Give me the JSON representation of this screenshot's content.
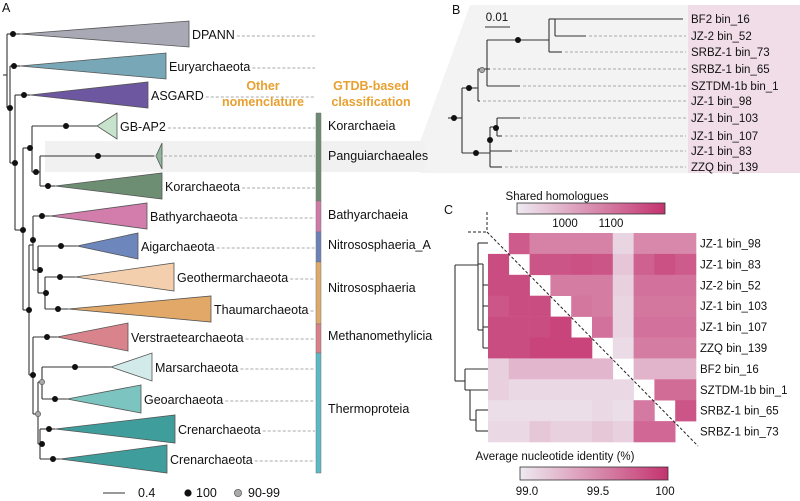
{
  "panel_labels": {
    "a": "A",
    "b": "B",
    "c": "C"
  },
  "panel_a": {
    "header_other": [
      "Other",
      "nomenclature"
    ],
    "header_gtdb": [
      "GTDB-based",
      "classification"
    ],
    "highlight_color": "#d8312e",
    "clades": [
      {
        "name": "DPANN",
        "color": "#a9a9b6"
      },
      {
        "name": "Euryarchaeota",
        "color": "#78a8b8"
      },
      {
        "name": "ASGARD",
        "color": "#6c57a0"
      },
      {
        "name": "GB-AP2",
        "color": "#c7e3cc"
      },
      {
        "name": "",
        "color": "#8fb89a"
      },
      {
        "name": "Korarchaeota",
        "color": "#6e8e74"
      },
      {
        "name": "Bathyarchaeota",
        "color": "#d27dac"
      },
      {
        "name": "Aigarchaeota",
        "color": "#6d86bb"
      },
      {
        "name": "Geothermarchaeota",
        "color": "#f4cfae"
      },
      {
        "name": "Thaumarchaeota",
        "color": "#e2a868"
      },
      {
        "name": "Verstraetearchaeota",
        "color": "#d9848c"
      },
      {
        "name": "Marsarchaeota",
        "color": "#d2eaea"
      },
      {
        "name": "Geoarchaeota",
        "color": "#7cc4c0"
      },
      {
        "name": "Crenarchaeota",
        "color": "#3f9e9c"
      },
      {
        "name": "Crenarchaeota",
        "color": "#3f9e9c"
      }
    ],
    "classifications": [
      {
        "name": "Korarchaeia",
        "color": "#6e8a72"
      },
      {
        "name": "Panguiarchaeales",
        "color": "#6e8a72",
        "highlight": true
      },
      {
        "name": "Bathyarchaeia",
        "color": "#d07aa6"
      },
      {
        "name": "Nitrososphaeria_A",
        "color": "#6a82b8"
      },
      {
        "name": "Nitrososphaeria",
        "color": "#e0a86a"
      },
      {
        "name": "Methanomethylicia",
        "color": "#d98088"
      },
      {
        "name": "Thermoproteia",
        "color": "#5bb8c4"
      }
    ],
    "legend": {
      "scale": "0.4",
      "support_full": "100",
      "support_partial": "90-99"
    }
  },
  "panel_b": {
    "scale": "0.01",
    "label_bg": "#f1dde8",
    "tips": [
      "BF2 bin_16",
      "JZ-2 bin_52",
      "SRBZ-1 bin_73",
      "SRBZ-1 bin_65",
      "SZTDM-1b bin_1",
      "JZ-1 bin_98",
      "JZ-1 bin_103",
      "JZ-1 bin_107",
      "JZ-1 bin_83",
      "ZZQ bin_139"
    ]
  },
  "panel_c": {
    "rows": [
      "JZ-1 bin_98",
      "JZ-1 bin_83",
      "JZ-2 bin_52",
      "JZ-1 bin_103",
      "JZ-1 bin_107",
      "ZZQ bin_139",
      "BF2 bin_16",
      "SZTDM-1b bin_1",
      "SRBZ-1 bin_65",
      "SRBZ-1 bin_73"
    ],
    "upper_legend": {
      "title": "Shared homologues",
      "ticks": [
        "1000",
        "1100"
      ],
      "range": [
        893,
        1222
      ]
    },
    "lower_legend": {
      "title": "Average nucleotide identity (%)",
      "ticks": [
        "99.0",
        "99.5",
        "100"
      ],
      "range": [
        98.95,
        100
      ]
    },
    "color_low": "#eeeaf1",
    "color_high": "#c4336f",
    "matrix": [
      [
        null,
        1150,
        1080,
        1080,
        1080,
        1080,
        930,
        1070,
        1070,
        1070
      ],
      [
        99.85,
        null,
        1160,
        1160,
        1170,
        1160,
        960,
        1140,
        1170,
        1150
      ],
      [
        99.85,
        99.85,
        null,
        1090,
        1090,
        1090,
        940,
        1110,
        1110,
        1110
      ],
      [
        99.8,
        99.85,
        99.85,
        null,
        1100,
        1090,
        930,
        1100,
        1100,
        1100
      ],
      [
        99.85,
        99.85,
        99.85,
        99.9,
        null,
        1110,
        930,
        1110,
        1110,
        1110
      ],
      [
        99.85,
        99.85,
        99.9,
        99.9,
        99.9,
        null,
        920,
        1090,
        1090,
        1090
      ],
      [
        99.1,
        99.25,
        99.25,
        99.25,
        99.25,
        99.25,
        null,
        990,
        990,
        990
      ],
      [
        99.1,
        99.05,
        99.05,
        99.05,
        99.05,
        99.05,
        99.05,
        null,
        1120,
        1120
      ],
      [
        99.02,
        99.02,
        99.02,
        99.02,
        99.02,
        99.05,
        99.02,
        99.6,
        null,
        1160
      ],
      [
        99.05,
        99.05,
        99.15,
        99.1,
        99.1,
        99.15,
        99.1,
        99.7,
        99.7,
        null
      ]
    ]
  }
}
